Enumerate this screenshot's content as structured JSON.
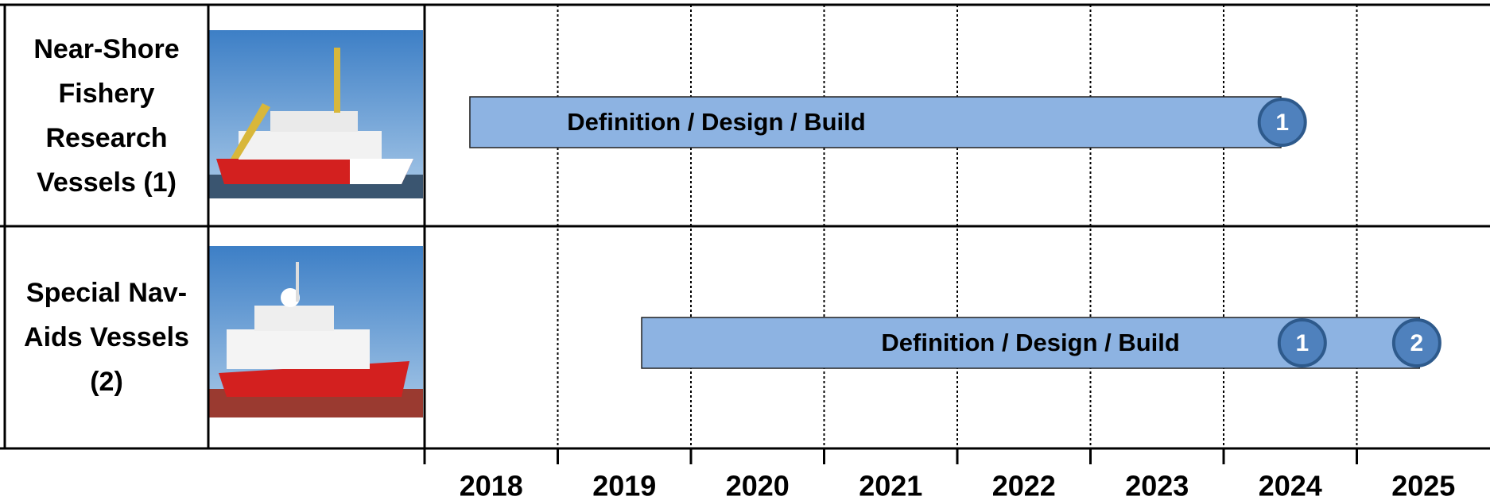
{
  "chart_data": {
    "type": "gantt",
    "rows": [
      {
        "label": "Near-Shore Fishery Research Vessels (1)",
        "task": "Definition / Design / Build",
        "start": 2018.34,
        "end": 2024.43,
        "milestones": [
          {
            "x": 2024.44,
            "label": "1"
          }
        ]
      },
      {
        "label": "Special Nav-Aids Vessels (2)",
        "task": "Definition / Design / Build",
        "start": 2019.63,
        "end": 2025.47,
        "milestones": [
          {
            "x": 2024.59,
            "label": "1"
          },
          {
            "x": 2025.45,
            "label": "2"
          }
        ]
      }
    ],
    "color": "#8db3e2",
    "milestone_color": "#4f81bd",
    "xlim": [
      2018,
      2026
    ],
    "xticks": [
      2018,
      2019,
      2020,
      2021,
      2022,
      2023,
      2024,
      2025
    ],
    "grid": true
  }
}
